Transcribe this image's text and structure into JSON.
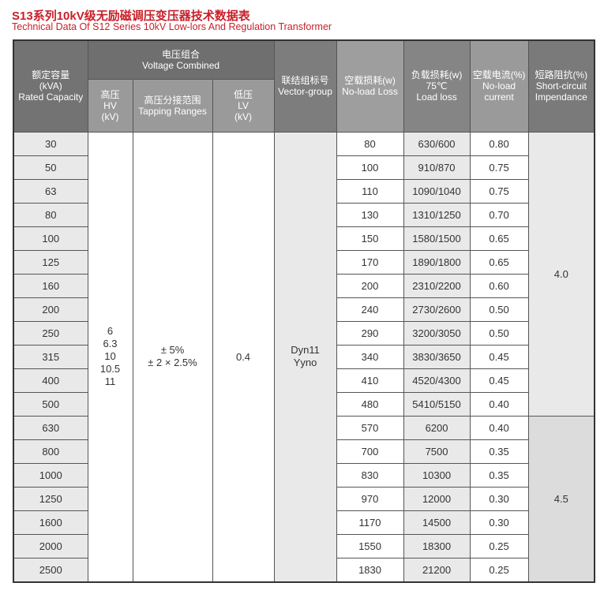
{
  "title": "S13系列10kV级无励磁调压变压器技术数据表",
  "subtitle": "Technical Data Of S12  Series 10kV Low-lors And  Regulation Transformer",
  "headers": {
    "capacity": [
      "额定容量",
      "(kVA)",
      "Rated Capacity"
    ],
    "voltage": [
      "电压组合",
      "Voltage Combined"
    ],
    "hv": [
      "高压",
      "HV",
      "(kV)"
    ],
    "tapping": [
      "高压分接范围",
      "Tapping Ranges"
    ],
    "lv": [
      "低压",
      "LV",
      "(kV)"
    ],
    "vector": [
      "联结组标号",
      "Vector-group"
    ],
    "noload_loss": [
      "空载损耗(w)",
      "No-load Loss"
    ],
    "load_loss": [
      "负载损耗(w)",
      "75℃",
      "Load loss"
    ],
    "noload_current": [
      "空载电流(%)",
      "No-load",
      "current"
    ],
    "short_circuit": [
      "短路阻抗(%)",
      "Short-circuit",
      "Impendance"
    ]
  },
  "merged": {
    "hv": [
      "6",
      "6.3",
      "10",
      "10.5",
      "11"
    ],
    "tapping": [
      "± 5%",
      "± 2 × 2.5%"
    ],
    "lv": "0.4",
    "vector": [
      "Dyn11",
      "Yyno"
    ],
    "short_circuit_a": "4.0",
    "short_circuit_b": "4.5"
  },
  "rows": [
    [
      "30",
      "80",
      "630/600",
      "0.80"
    ],
    [
      "50",
      "100",
      "910/870",
      "0.75"
    ],
    [
      "63",
      "110",
      "1090/1040",
      "0.75"
    ],
    [
      "80",
      "130",
      "1310/1250",
      "0.70"
    ],
    [
      "100",
      "150",
      "1580/1500",
      "0.65"
    ],
    [
      "125",
      "170",
      "1890/1800",
      "0.65"
    ],
    [
      "160",
      "200",
      "2310/2200",
      "0.60"
    ],
    [
      "200",
      "240",
      "2730/2600",
      "0.50"
    ],
    [
      "250",
      "290",
      "3200/3050",
      "0.50"
    ],
    [
      "315",
      "340",
      "3830/3650",
      "0.45"
    ],
    [
      "400",
      "410",
      "4520/4300",
      "0.45"
    ],
    [
      "500",
      "480",
      "5410/5150",
      "0.40"
    ],
    [
      "630",
      "570",
      "6200",
      "0.40"
    ],
    [
      "800",
      "700",
      "7500",
      "0.35"
    ],
    [
      "1000",
      "830",
      "10300",
      "0.35"
    ],
    [
      "1250",
      "970",
      "12000",
      "0.30"
    ],
    [
      "1600",
      "1170",
      "14500",
      "0.30"
    ],
    [
      "2000",
      "1550",
      "18300",
      "0.25"
    ],
    [
      "2500",
      "1830",
      "21200",
      "0.25"
    ]
  ]
}
